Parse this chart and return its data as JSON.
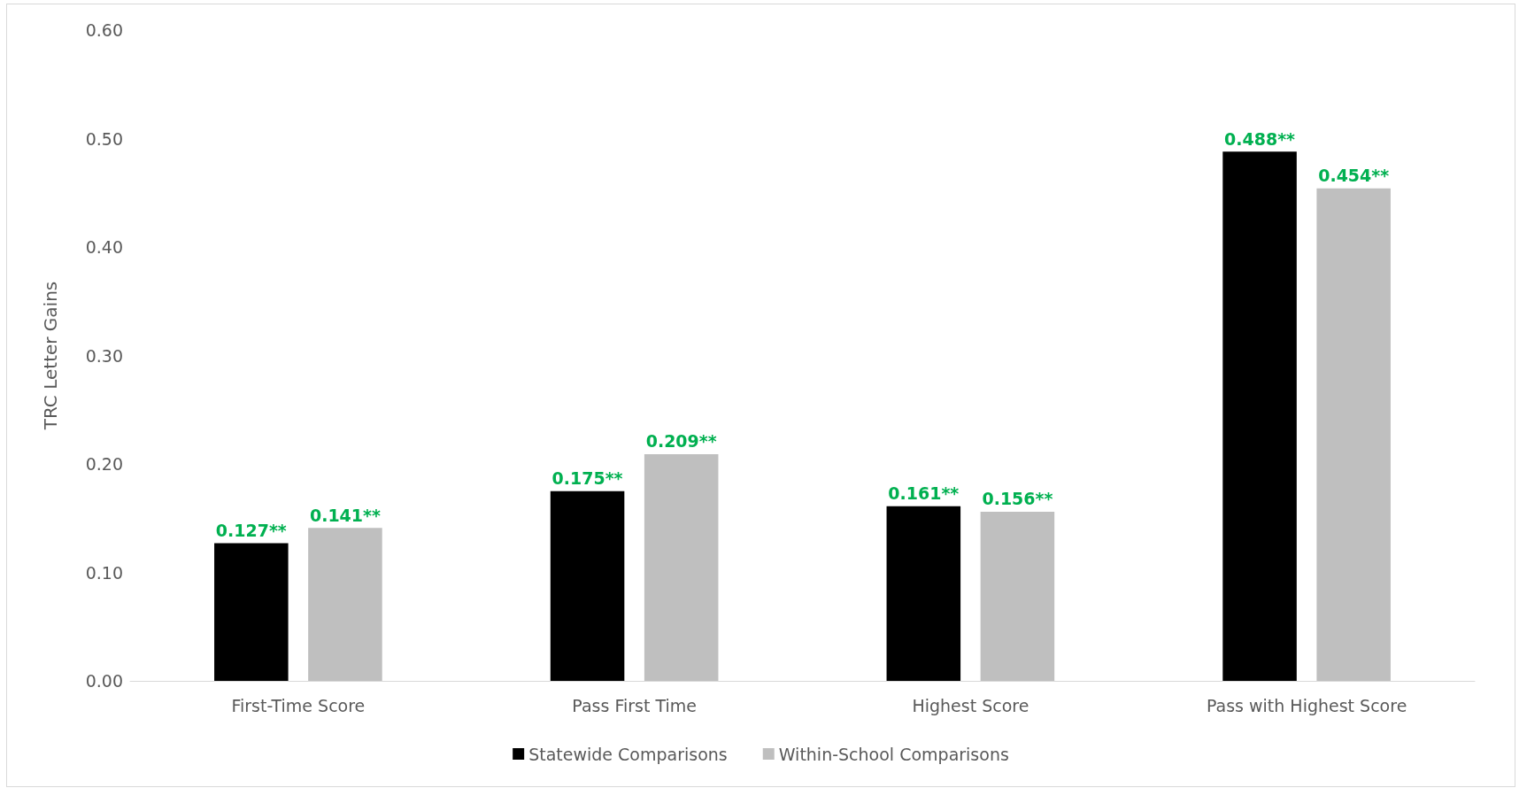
{
  "chart_data": {
    "type": "bar",
    "ylabel": "TRC Letter Gains",
    "categories": [
      "First-Time Score",
      "Pass First Time",
      "Highest Score",
      "Pass with Highest Score"
    ],
    "series": [
      {
        "name": "Statewide Comparisons",
        "color": "#000000",
        "values": [
          0.127,
          0.175,
          0.161,
          0.488
        ],
        "value_labels": [
          "0.127**",
          "0.175**",
          "0.161**",
          "0.488**"
        ]
      },
      {
        "name": "Within-School Comparisons",
        "color": "#bfbfbf",
        "values": [
          0.141,
          0.209,
          0.156,
          0.454
        ],
        "value_labels": [
          "0.141**",
          "0.209**",
          "0.156**",
          "0.454**"
        ]
      }
    ],
    "ylim": [
      0,
      0.6
    ],
    "yticks": [
      {
        "value": 0,
        "label": "0.00"
      },
      {
        "value": 0.1,
        "label": "0.10"
      },
      {
        "value": 0.2,
        "label": "0.20"
      },
      {
        "value": 0.3,
        "label": "0.30"
      },
      {
        "value": 0.4,
        "label": "0.40"
      },
      {
        "value": 0.5,
        "label": "0.50"
      },
      {
        "value": 0.6,
        "label": "0.60"
      }
    ],
    "grid": false,
    "legend": "bottom"
  }
}
